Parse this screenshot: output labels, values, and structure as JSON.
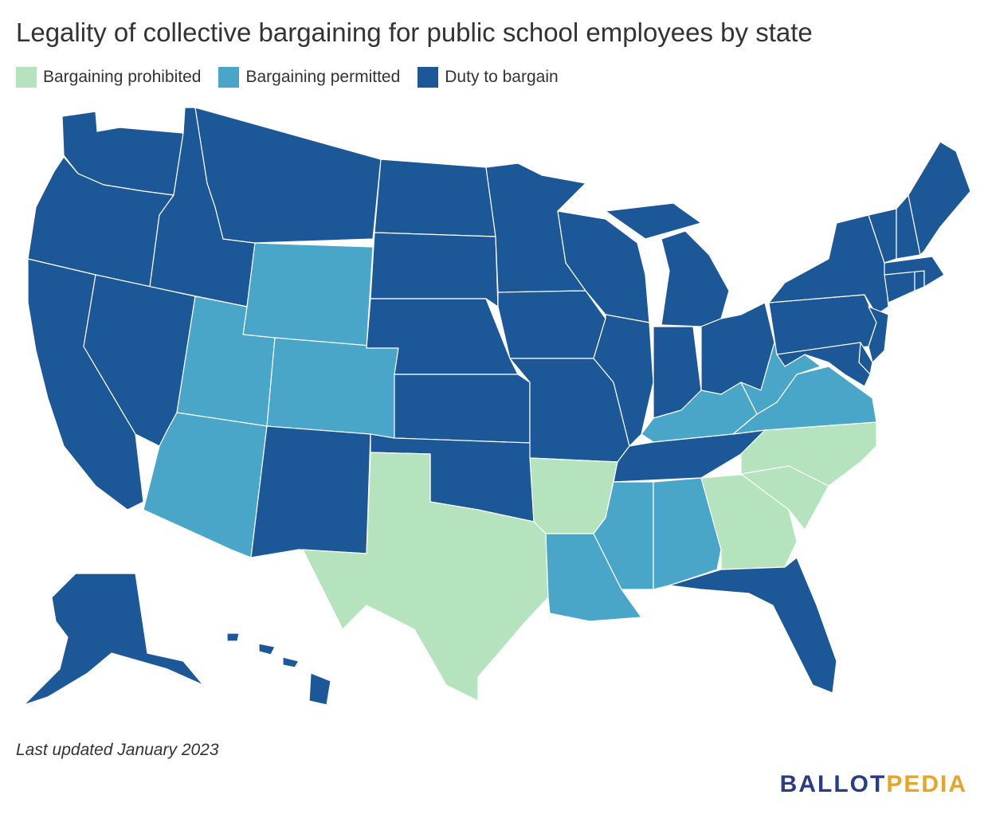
{
  "title": "Legality of collective bargaining for public school employees by state",
  "legend": [
    {
      "label": "Bargaining prohibited",
      "color": "#b5e3bd"
    },
    {
      "label": "Bargaining permitted",
      "color": "#4aa6c8"
    },
    {
      "label": "Duty to bargain",
      "color": "#1c5797"
    }
  ],
  "footnote": "Last updated January 2023",
  "logo": {
    "part1": "BALLOT",
    "part2": "PEDIA"
  },
  "states": {
    "prohibited": [
      "TX",
      "AR",
      "GA",
      "SC",
      "NC"
    ],
    "permitted": [
      "WY",
      "UT",
      "CO",
      "AZ",
      "KY",
      "WV",
      "VA",
      "LA",
      "MS",
      "AL"
    ],
    "duty_to_bargain": [
      "WA",
      "OR",
      "CA",
      "ID",
      "NV",
      "MT",
      "ND",
      "SD",
      "NE",
      "KS",
      "OK",
      "NM",
      "MN",
      "IA",
      "MO",
      "WI",
      "IL",
      "MI",
      "IN",
      "OH",
      "TN",
      "FL",
      "PA",
      "NY",
      "NJ",
      "DE",
      "MD",
      "CT",
      "RI",
      "MA",
      "VT",
      "NH",
      "ME",
      "AK",
      "HI"
    ]
  }
}
